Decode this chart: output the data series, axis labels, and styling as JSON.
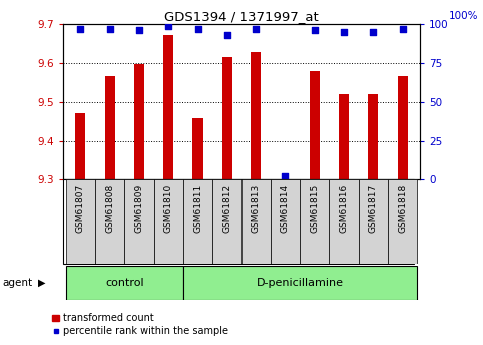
{
  "title": "GDS1394 / 1371997_at",
  "samples": [
    "GSM61807",
    "GSM61808",
    "GSM61809",
    "GSM61810",
    "GSM61811",
    "GSM61812",
    "GSM61813",
    "GSM61814",
    "GSM61815",
    "GSM61816",
    "GSM61817",
    "GSM61818"
  ],
  "bar_values": [
    9.472,
    9.567,
    9.597,
    9.672,
    9.457,
    9.615,
    9.628,
    9.302,
    9.58,
    9.52,
    9.52,
    9.567
  ],
  "percentile_values": [
    97,
    97,
    96,
    99,
    97,
    93,
    97,
    2,
    96,
    95,
    95,
    97
  ],
  "bar_base": 9.3,
  "ylim_left": [
    9.3,
    9.7
  ],
  "ylim_right": [
    0,
    100
  ],
  "yticks_left": [
    9.3,
    9.4,
    9.5,
    9.6,
    9.7
  ],
  "yticks_right": [
    0,
    25,
    50,
    75,
    100
  ],
  "bar_color": "#cc0000",
  "dot_color": "#0000cc",
  "control_group": [
    0,
    1,
    2,
    3
  ],
  "treatment_group": [
    4,
    5,
    6,
    7,
    8,
    9,
    10,
    11
  ],
  "control_label": "control",
  "treatment_label": "D-penicillamine",
  "agent_label": "agent",
  "legend_bar_label": "transformed count",
  "legend_dot_label": "percentile rank within the sample",
  "group_box_color": "#90ee90",
  "tick_bg_color": "#d3d3d3",
  "bar_width": 0.35,
  "dot_size": 18,
  "right_axis_label": "100%",
  "grid_ticks": [
    9.4,
    9.5,
    9.6
  ],
  "figure_bg": "#ffffff"
}
